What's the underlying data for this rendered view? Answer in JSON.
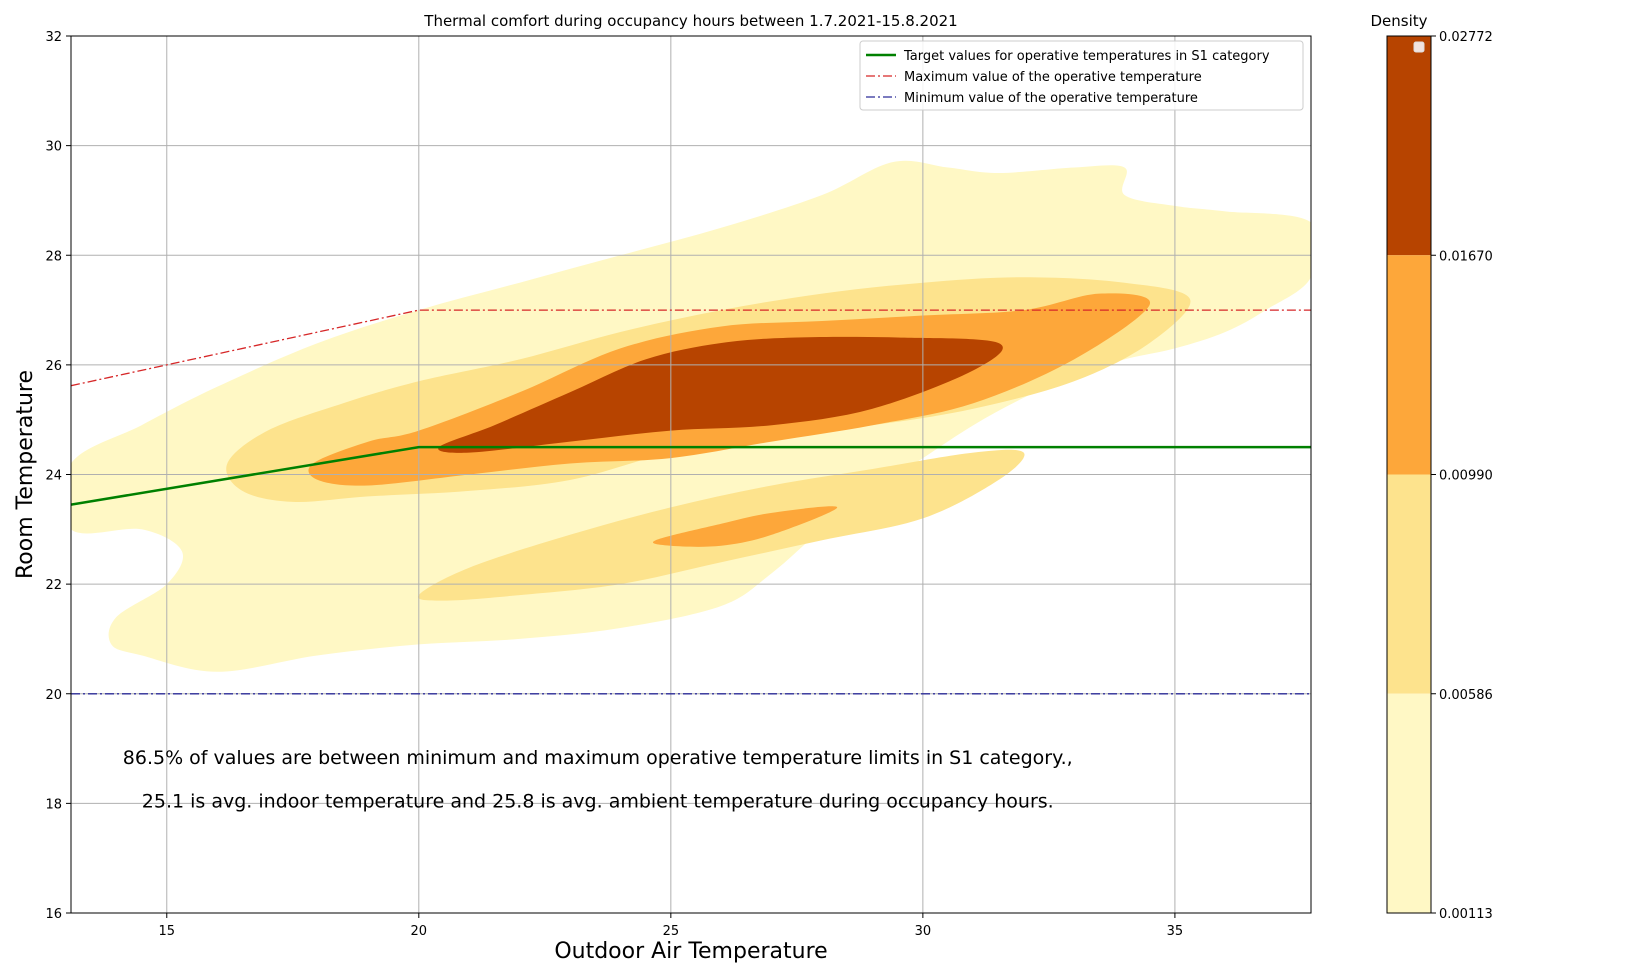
{
  "chart_data": {
    "type": "kde-contour",
    "title": "Thermal comfort during occupancy hours between 1.7.2021-15.8.2021",
    "xlabel": "Outdoor Air Temperature",
    "ylabel": "Room Temperature",
    "xlim": [
      13.1,
      37.7
    ],
    "ylim": [
      16,
      32
    ],
    "xticks": [
      15,
      20,
      25,
      30,
      35
    ],
    "yticks": [
      16,
      18,
      20,
      22,
      24,
      26,
      28,
      30,
      32
    ],
    "grid": true,
    "legend_placement": "top-right",
    "legend": [
      {
        "label": "Target values for operative temperatures in S1 category",
        "color": "#008000",
        "style": "solid"
      },
      {
        "label": "Maximum value of the operative temperature",
        "color": "#d62728",
        "style": "dashdot"
      },
      {
        "label": "Minimum value of the operative temperature",
        "color": "#2c2c99",
        "style": "dashdot"
      }
    ],
    "series": [
      {
        "name": "Target values for operative temperatures in S1 category",
        "x": [
          13.1,
          20,
          37.7
        ],
        "y": [
          23.45,
          24.5,
          24.5
        ]
      },
      {
        "name": "Maximum value of the operative temperature",
        "x": [
          13.1,
          20,
          37.7
        ],
        "y": [
          25.62,
          27,
          27
        ]
      },
      {
        "name": "Minimum value of the operative temperature",
        "x": [
          13.1,
          37.7
        ],
        "y": [
          20,
          20
        ]
      }
    ],
    "density_levels": [
      {
        "level": 0,
        "color": "#fff8c5",
        "regions": [
          [
            [
              13.1,
              24.2
            ],
            [
              14.5,
              24.9
            ],
            [
              16,
              25.6
            ],
            [
              18,
              26.4
            ],
            [
              20,
              27.0
            ],
            [
              22,
              27.5
            ],
            [
              24,
              28.0
            ],
            [
              26,
              28.5
            ],
            [
              28,
              29.1
            ],
            [
              29.4,
              29.7
            ],
            [
              30.5,
              29.6
            ],
            [
              31.5,
              29.5
            ],
            [
              33,
              29.6
            ],
            [
              34,
              29.6
            ],
            [
              34,
              29.1
            ],
            [
              35,
              28.9
            ],
            [
              36,
              28.8
            ],
            [
              37.7,
              28.6
            ],
            [
              37.7,
              27.6
            ],
            [
              36.8,
              27.0
            ],
            [
              36,
              26.6
            ],
            [
              35,
              26.3
            ],
            [
              34,
              26.1
            ],
            [
              33,
              25.8
            ],
            [
              32,
              25.4
            ],
            [
              31,
              24.9
            ],
            [
              30,
              24.3
            ],
            [
              29,
              23.7
            ],
            [
              28,
              23.0
            ],
            [
              27,
              22.2
            ],
            [
              26,
              21.6
            ],
            [
              24,
              21.2
            ],
            [
              22,
              21.0
            ],
            [
              20,
              20.9
            ],
            [
              18,
              20.7
            ],
            [
              16,
              20.4
            ],
            [
              14.5,
              20.7
            ],
            [
              13.9,
              20.9
            ],
            [
              14.0,
              21.4
            ],
            [
              15,
              22.0
            ],
            [
              15.3,
              22.6
            ],
            [
              14.5,
              23.0
            ],
            [
              13.1,
              23.0
            ]
          ]
        ]
      },
      {
        "level": 1,
        "color": "#fde38d",
        "regions": [
          [
            [
              16.2,
              24.2
            ],
            [
              17,
              24.8
            ],
            [
              18.5,
              25.3
            ],
            [
              20,
              25.7
            ],
            [
              22,
              26.1
            ],
            [
              24,
              26.6
            ],
            [
              26,
              27.0
            ],
            [
              28,
              27.3
            ],
            [
              30,
              27.5
            ],
            [
              32,
              27.6
            ],
            [
              34,
              27.5
            ],
            [
              35.3,
              27.2
            ],
            [
              34.5,
              26.4
            ],
            [
              33,
              25.7
            ],
            [
              31,
              25.2
            ],
            [
              29,
              24.9
            ],
            [
              27,
              24.7
            ],
            [
              25,
              24.4
            ],
            [
              23,
              23.9
            ],
            [
              21,
              23.7
            ],
            [
              19,
              23.6
            ],
            [
              17.5,
              23.5
            ],
            [
              16.5,
              23.7
            ]
          ],
          [
            [
              20,
              21.8
            ],
            [
              21,
              22.3
            ],
            [
              23,
              22.9
            ],
            [
              25,
              23.4
            ],
            [
              27,
              23.8
            ],
            [
              29,
              24.1
            ],
            [
              31,
              24.4
            ],
            [
              32,
              24.4
            ],
            [
              31.5,
              23.9
            ],
            [
              30,
              23.2
            ],
            [
              28,
              22.8
            ],
            [
              26,
              22.4
            ],
            [
              24,
              22.0
            ],
            [
              22,
              21.8
            ],
            [
              20.5,
              21.7
            ]
          ]
        ]
      },
      {
        "level": 2,
        "color": "#fda73a",
        "regions": [
          [
            [
              17.9,
              24.2
            ],
            [
              19,
              24.6
            ],
            [
              20,
              24.8
            ],
            [
              22,
              25.5
            ],
            [
              24,
              26.3
            ],
            [
              26,
              26.7
            ],
            [
              28,
              26.8
            ],
            [
              30,
              26.9
            ],
            [
              32,
              27.0
            ],
            [
              33.5,
              27.3
            ],
            [
              34.5,
              27.1
            ],
            [
              33,
              26.1
            ],
            [
              31,
              25.3
            ],
            [
              29,
              24.9
            ],
            [
              27,
              24.6
            ],
            [
              25,
              24.3
            ],
            [
              23,
              24.2
            ],
            [
              21,
              24.0
            ],
            [
              19,
              23.8
            ],
            [
              18,
              23.9
            ]
          ],
          [
            [
              24.7,
              22.8
            ],
            [
              26,
              23.1
            ],
            [
              27,
              23.3
            ],
            [
              28.3,
              23.4
            ],
            [
              27,
              22.9
            ],
            [
              26,
              22.7
            ],
            [
              25,
              22.7
            ]
          ]
        ]
      },
      {
        "level": 3,
        "color": "#b74400",
        "regions": [
          [
            [
              20.4,
              24.5
            ],
            [
              21.5,
              24.9
            ],
            [
              23,
              25.5
            ],
            [
              24.5,
              26.1
            ],
            [
              26,
              26.4
            ],
            [
              27.5,
              26.5
            ],
            [
              29.5,
              26.5
            ],
            [
              31.5,
              26.4
            ],
            [
              31,
              25.9
            ],
            [
              29,
              25.2
            ],
            [
              27,
              24.9
            ],
            [
              25,
              24.8
            ],
            [
              23,
              24.6
            ],
            [
              21,
              24.4
            ]
          ]
        ]
      }
    ],
    "colorbar": {
      "label": "Density",
      "ticks": [
        "0.02772",
        "0.01670",
        "0.00990",
        "0.00586",
        "0.00113"
      ],
      "bands": [
        {
          "from": 0.0167,
          "to": 0.02772,
          "color": "#b74400"
        },
        {
          "from": 0.0099,
          "to": 0.0167,
          "color": "#fda73a"
        },
        {
          "from": 0.00586,
          "to": 0.0099,
          "color": "#fde38d"
        },
        {
          "from": 0.00113,
          "to": 0.00586,
          "color": "#fff8c5"
        }
      ]
    },
    "annotations": [
      "86.5% of values are between minimum and maximum operative temperature limits in S1 category.,",
      "25.1 is avg. indoor temperature and 25.8 is avg. ambient temperature during occupancy hours."
    ]
  }
}
